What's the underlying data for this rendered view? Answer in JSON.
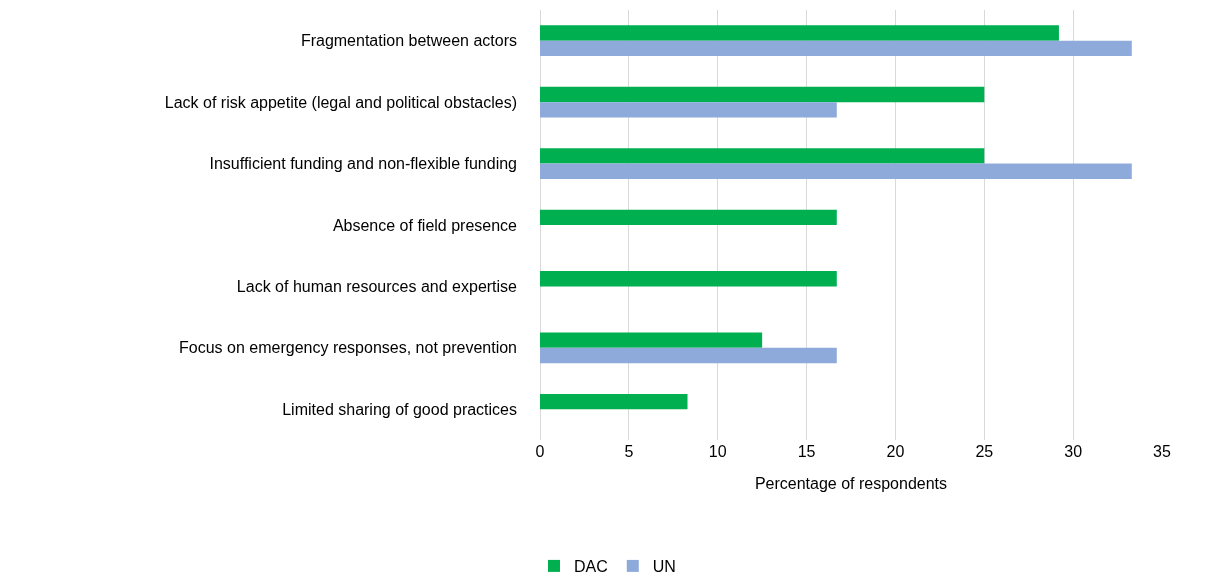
{
  "chart_data": {
    "type": "bar",
    "orientation": "horizontal",
    "categories": [
      "Fragmentation between actors",
      "Lack of risk appetite (legal and political obstacles)",
      "Insufficient funding and non-flexible funding",
      "Absence of field presence",
      "Lack of human resources and expertise",
      "Focus on emergency responses, not prevention",
      "Limited sharing of good practices"
    ],
    "series": [
      {
        "name": "DAC",
        "color": "#00b050",
        "values": [
          29.2,
          25,
          25,
          16.7,
          16.7,
          12.5,
          8.3
        ]
      },
      {
        "name": "UN",
        "color": "#8eaadb",
        "values": [
          33.3,
          16.7,
          33.3,
          null,
          null,
          16.7,
          null
        ]
      }
    ],
    "xlabel": "Percentage of respondents",
    "xlim": [
      0,
      35
    ],
    "xticks": [
      0,
      5,
      10,
      15,
      20,
      25,
      30,
      35
    ],
    "grid": "x",
    "legend": "bottom"
  }
}
